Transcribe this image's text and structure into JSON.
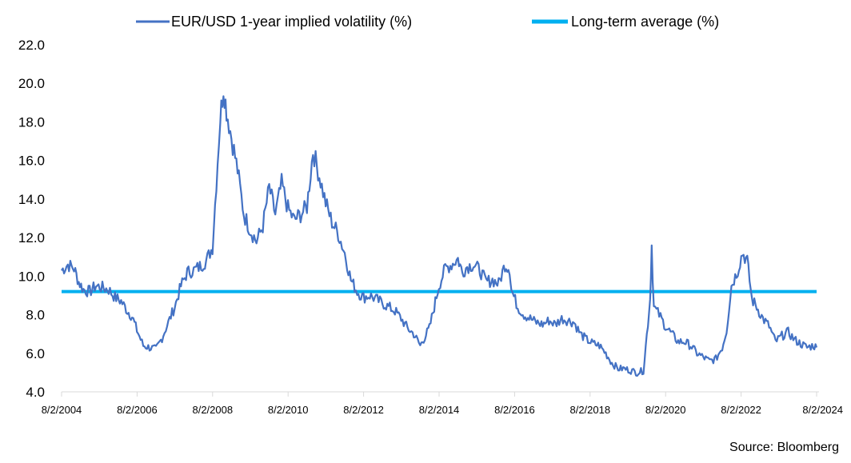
{
  "source": "Source: Bloomberg",
  "colors": {
    "vol_series": "#4472C4",
    "average_line": "#00B0F0",
    "axis": "#D9D9D9"
  },
  "chart_data": {
    "type": "line",
    "title": "",
    "xlabel": "",
    "ylabel": "",
    "ylim": [
      4.0,
      22.0
    ],
    "yticks": [
      "4.0",
      "6.0",
      "8.0",
      "10.0",
      "12.0",
      "14.0",
      "16.0",
      "18.0",
      "20.0",
      "22.0"
    ],
    "xticks": [
      "8/2/2004",
      "8/2/2006",
      "8/2/2008",
      "8/2/2010",
      "8/2/2012",
      "8/2/2014",
      "8/2/2016",
      "8/2/2018",
      "8/2/2020",
      "8/2/2022",
      "8/2/2024"
    ],
    "xlim": [
      "2004-08-02",
      "2024-08-02"
    ],
    "grid": false,
    "legend_position": "top",
    "series": [
      {
        "name": "EUR/USD 1-year implied volatility (%)",
        "x": [
          "2004-08-02",
          "2004-10-01",
          "2004-12-01",
          "2005-01-15",
          "2005-03-01",
          "2005-05-01",
          "2005-07-01",
          "2005-09-01",
          "2005-11-01",
          "2006-01-01",
          "2006-03-01",
          "2006-05-01",
          "2006-06-15",
          "2006-08-01",
          "2006-10-01",
          "2006-12-01",
          "2007-02-01",
          "2007-04-01",
          "2007-06-01",
          "2007-08-01",
          "2007-10-01",
          "2007-12-01",
          "2008-02-01",
          "2008-04-01",
          "2008-06-01",
          "2008-08-01",
          "2008-10-15",
          "2008-11-15",
          "2008-12-15",
          "2009-02-01",
          "2009-04-01",
          "2009-06-01",
          "2009-08-01",
          "2009-10-01",
          "2009-12-01",
          "2010-02-01",
          "2010-04-01",
          "2010-06-01",
          "2010-08-01",
          "2010-10-01",
          "2010-12-01",
          "2011-02-01",
          "2011-04-01",
          "2011-06-01",
          "2011-08-01",
          "2011-10-01",
          "2011-12-01",
          "2012-02-01",
          "2012-04-01",
          "2012-06-01",
          "2012-08-01",
          "2012-10-01",
          "2012-12-01",
          "2013-02-01",
          "2013-04-01",
          "2013-06-01",
          "2013-08-01",
          "2013-10-01",
          "2013-12-01",
          "2014-02-01",
          "2014-05-01",
          "2014-08-01",
          "2014-10-01",
          "2014-12-01",
          "2015-02-01",
          "2015-03-15",
          "2015-05-01",
          "2015-07-01",
          "2015-09-01",
          "2015-11-01",
          "2016-01-01",
          "2016-03-01",
          "2016-05-01",
          "2016-06-15",
          "2016-07-01",
          "2016-09-01",
          "2016-11-01",
          "2017-01-01",
          "2017-03-01",
          "2017-05-01",
          "2017-07-01",
          "2017-09-01",
          "2017-11-01",
          "2018-01-01",
          "2018-03-01",
          "2018-05-01",
          "2018-07-01",
          "2018-09-01",
          "2018-11-01",
          "2019-01-01",
          "2019-03-01",
          "2019-05-01",
          "2019-07-01",
          "2019-09-01",
          "2019-11-01",
          "2020-01-01",
          "2020-03-05",
          "2020-03-20",
          "2020-04-10",
          "2020-06-01",
          "2020-08-01",
          "2020-10-01",
          "2020-12-01",
          "2021-02-01",
          "2021-04-01",
          "2021-06-01",
          "2021-08-01",
          "2021-10-01",
          "2021-12-01",
          "2022-02-01",
          "2022-03-15",
          "2022-05-01",
          "2022-07-01",
          "2022-08-15",
          "2022-10-01",
          "2022-11-15",
          "2023-01-01",
          "2023-03-01",
          "2023-05-01",
          "2023-07-01",
          "2023-09-01",
          "2023-11-01",
          "2024-01-01",
          "2024-03-01",
          "2024-05-01",
          "2024-07-01",
          "2024-08-02"
        ],
        "values": [
          10.3,
          10.6,
          10.4,
          9.7,
          9.3,
          9.2,
          9.5,
          9.4,
          9.3,
          8.9,
          8.7,
          8.2,
          7.9,
          7.2,
          6.4,
          6.3,
          6.2,
          6.8,
          7.6,
          8.4,
          9.5,
          10.2,
          10.3,
          10.5,
          10.8,
          11.5,
          18.2,
          19.8,
          18.6,
          17.2,
          15.5,
          13.2,
          12.4,
          11.8,
          12.6,
          14.6,
          13.2,
          14.8,
          13.5,
          12.9,
          13.2,
          13.6,
          16.5,
          15.2,
          13.8,
          12.8,
          12.2,
          11.2,
          9.8,
          9.2,
          8.9,
          9.0,
          8.8,
          8.6,
          8.4,
          8.2,
          7.8,
          7.3,
          7.0,
          6.4,
          7.3,
          9.5,
          10.4,
          10.6,
          10.9,
          10.2,
          10.5,
          10.6,
          10.3,
          9.7,
          9.8,
          9.6,
          10.6,
          10.4,
          9.3,
          8.4,
          8.0,
          7.8,
          7.6,
          7.5,
          7.7,
          7.5,
          7.8,
          7.7,
          7.6,
          7.0,
          6.7,
          6.5,
          6.4,
          6.0,
          5.5,
          5.2,
          5.2,
          5.1,
          5.0,
          5.1,
          8.8,
          11.6,
          8.4,
          8.0,
          7.4,
          7.0,
          6.6,
          6.6,
          6.4,
          6.0,
          5.8,
          5.6,
          5.7,
          6.3,
          7.2,
          9.5,
          10.3,
          11.2,
          10.8,
          8.8,
          8.4,
          7.8,
          7.4,
          6.6,
          6.9,
          7.1,
          6.7,
          6.5,
          6.3,
          6.4,
          6.3
        ]
      },
      {
        "name": "Long-term average (%)",
        "x": [
          "2004-08-02",
          "2024-08-02"
        ],
        "values": [
          9.2,
          9.2
        ]
      }
    ]
  }
}
